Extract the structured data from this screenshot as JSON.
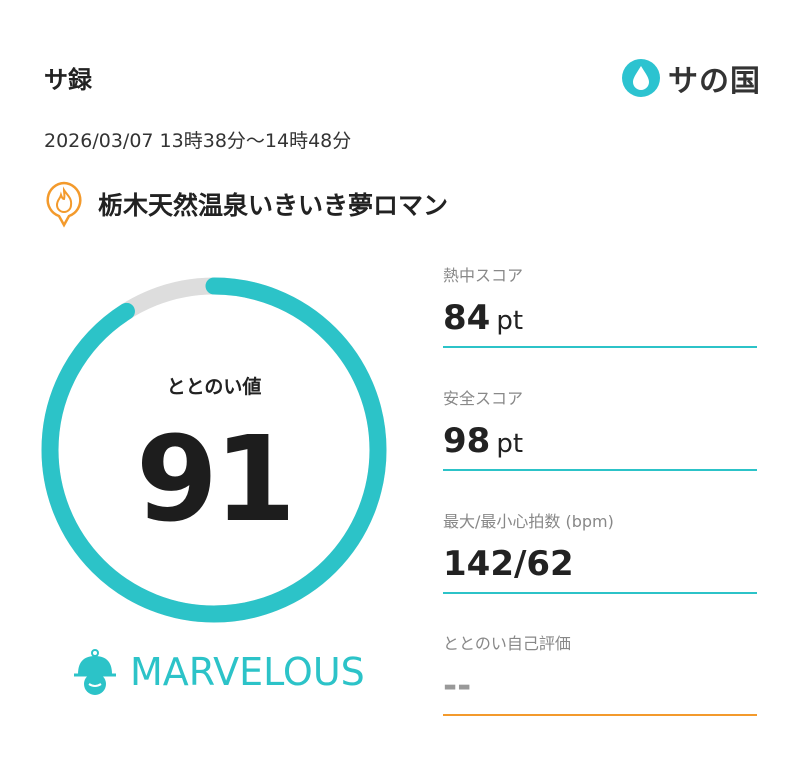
{
  "header": {
    "title": "サ録",
    "logo_text": "サの国"
  },
  "session": {
    "datetime": "2026/03/07 13時38分〜14時48分"
  },
  "facility": {
    "name": "栃木天然温泉いきいき夢ロマン",
    "icon": "sauna-fire-pin-icon"
  },
  "gauge": {
    "label": "ととのい値",
    "value": "91",
    "percent": 91,
    "fill_color": "#2cc3c8",
    "track_color": "#dddddd"
  },
  "rating": {
    "label": "MARVELOUS",
    "icon": "sauna-hat-icon",
    "color": "#2cc3c8"
  },
  "stats": [
    {
      "label": "熱中スコア",
      "value": "84",
      "unit": "pt"
    },
    {
      "label": "安全スコア",
      "value": "98",
      "unit": "pt"
    },
    {
      "label": "最大/最小心拍数 (bpm)",
      "value": "142/62",
      "unit": ""
    },
    {
      "label": "ととのい自己評価",
      "value": "--",
      "unit": ""
    }
  ]
}
